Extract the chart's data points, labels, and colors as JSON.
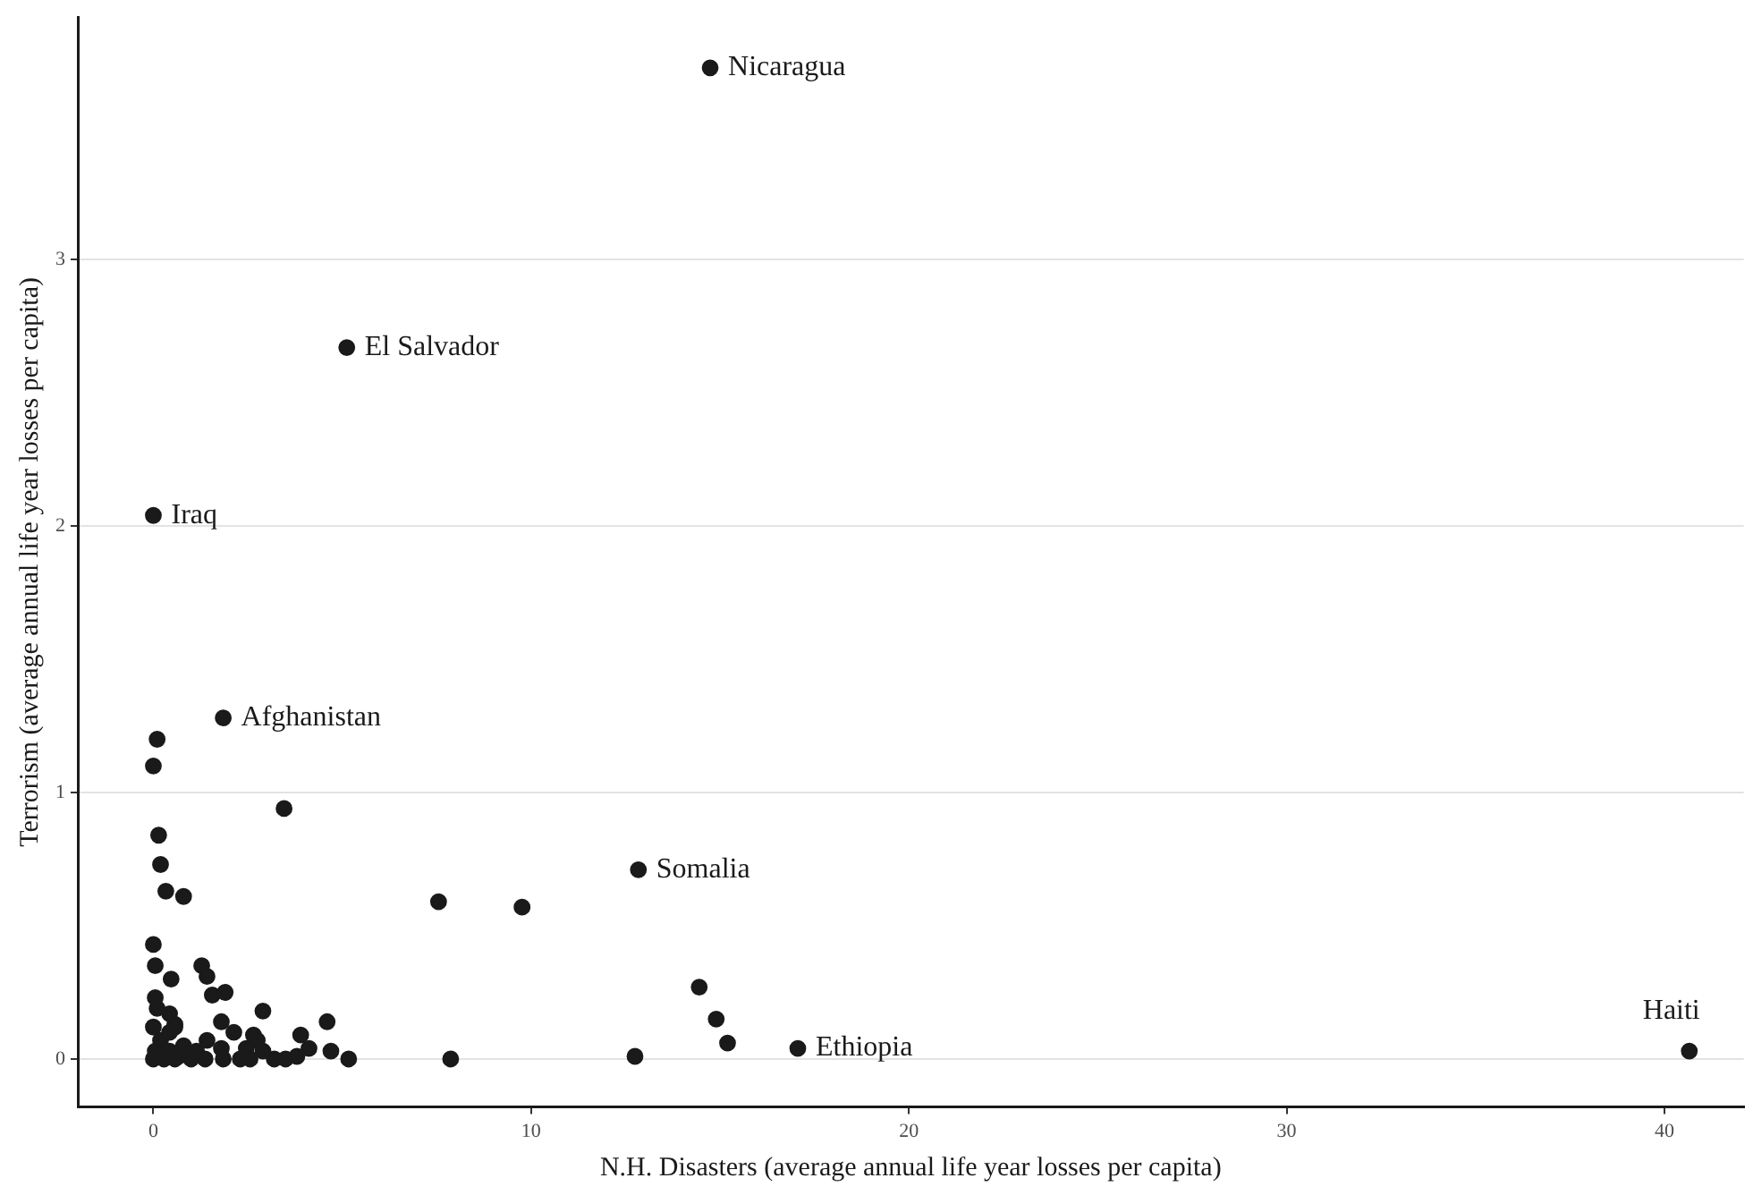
{
  "chart_data": {
    "type": "scatter",
    "xlabel": "N.H. Disasters (average annual life year losses per capita)",
    "ylabel": "Terrorism (average annual life year losses per capita)",
    "xlim": [
      -2,
      42.1
    ],
    "ylim": [
      -0.18,
      3.91
    ],
    "xticks": [
      0,
      10,
      20,
      30,
      40
    ],
    "yticks": [
      0,
      1,
      2,
      3
    ],
    "grid": "y",
    "legend": false,
    "marker": "circle",
    "series": [
      {
        "color": "#1a1a1a",
        "x": [
          14.74,
          5.12,
          0,
          1.85,
          12.84,
          17.06,
          40.66,
          0.1,
          0,
          3.46,
          0.14,
          0.19,
          0.33,
          0.8,
          7.55,
          9.76,
          0,
          0.05,
          0.47,
          1.28,
          1.42,
          1.56,
          1.9,
          0.05,
          0.1,
          0.43,
          0.57,
          0,
          1.8,
          2.9,
          2.13,
          2.65,
          2.75,
          1.42,
          3.9,
          4.6,
          4.7,
          5.17,
          4.12,
          3.8,
          3.5,
          3.2,
          2.9,
          2.46,
          1.8,
          2.3,
          1.85,
          1.37,
          1,
          0.66,
          0.43,
          0.19,
          0.05,
          0,
          0.28,
          0.57,
          1.14,
          0.8,
          2.56,
          0.57,
          0.43,
          7.87,
          14.45,
          14.9,
          15.2,
          12.75
        ],
        "values": [
          3.72,
          2.67,
          2.04,
          1.28,
          0.71,
          0.04,
          0.03,
          1.2,
          1.1,
          0.94,
          0.84,
          0.73,
          0.63,
          0.61,
          0.59,
          0.57,
          0.43,
          0.35,
          0.3,
          0.35,
          0.31,
          0.24,
          0.25,
          0.23,
          0.19,
          0.17,
          0.13,
          0.12,
          0.14,
          0.18,
          0.1,
          0.09,
          0.07,
          0.07,
          0.09,
          0.14,
          0.03,
          0,
          0.04,
          0.01,
          0,
          0,
          0.03,
          0.04,
          0.04,
          0,
          0,
          0,
          0,
          0.01,
          0.03,
          0.07,
          0.03,
          0,
          0,
          0,
          0.03,
          0.05,
          0,
          0.12,
          0.1,
          0,
          0.27,
          0.15,
          0.06,
          0.01
        ]
      }
    ],
    "annotations": [
      {
        "text": "Nicaragua",
        "x": 14.74,
        "y": 3.72
      },
      {
        "text": "El Salvador",
        "x": 5.12,
        "y": 2.67
      },
      {
        "text": "Iraq",
        "x": 0,
        "y": 2.04
      },
      {
        "text": "Afghanistan",
        "x": 1.85,
        "y": 1.28
      },
      {
        "text": "Somalia",
        "x": 12.84,
        "y": 0.71
      },
      {
        "text": "Ethiopia",
        "x": 17.06,
        "y": 0.04
      },
      {
        "text": "Haiti",
        "x": 40.66,
        "y": 0.03
      }
    ]
  }
}
